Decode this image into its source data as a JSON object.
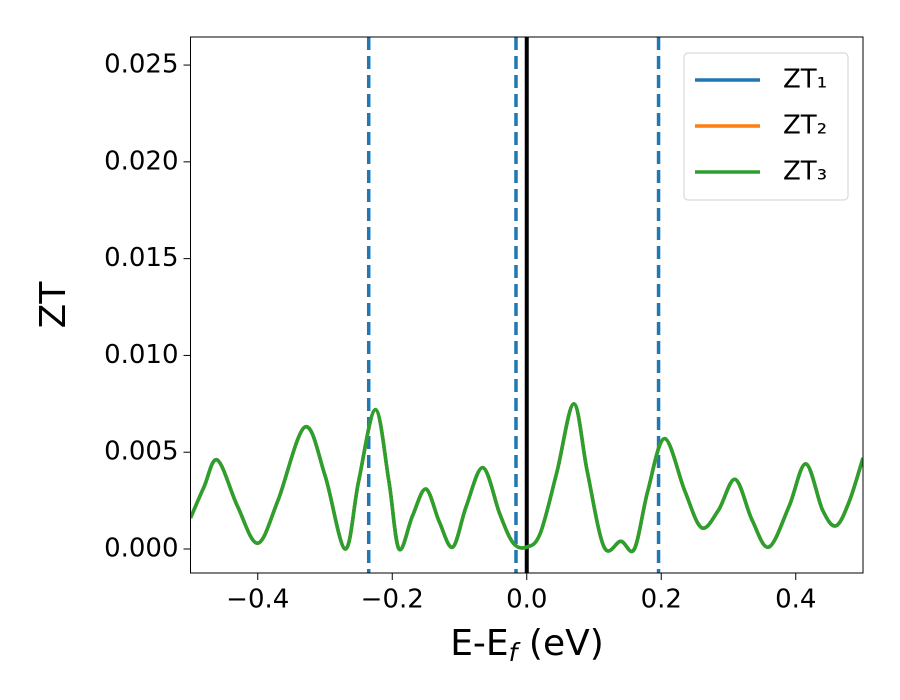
{
  "chart_data": {
    "type": "line",
    "xlabel": [
      "E-E",
      "f",
      " (eV)"
    ],
    "ylabel": "ZT",
    "x": [
      -0.5,
      -0.48,
      -0.46,
      -0.43,
      -0.4,
      -0.37,
      -0.33,
      -0.3,
      -0.27,
      -0.25,
      -0.225,
      -0.205,
      -0.19,
      -0.17,
      -0.15,
      -0.13,
      -0.11,
      -0.09,
      -0.065,
      -0.04,
      -0.02,
      0.0,
      0.02,
      0.045,
      0.07,
      0.09,
      0.115,
      0.14,
      0.16,
      0.18,
      0.205,
      0.235,
      0.26,
      0.285,
      0.31,
      0.335,
      0.36,
      0.39,
      0.415,
      0.44,
      0.46,
      0.48,
      0.5
    ],
    "series": [
      {
        "name": "ZT₁",
        "color": "#1f77b4",
        "values": [
          0.0016,
          0.0032,
          0.0046,
          0.0022,
          0.0003,
          0.0025,
          0.0063,
          0.0038,
          0.0,
          0.0035,
          0.0072,
          0.0035,
          0.0,
          0.0017,
          0.0031,
          0.0014,
          0.0001,
          0.0022,
          0.0042,
          0.0018,
          0.0003,
          0.0001,
          0.0008,
          0.004,
          0.0075,
          0.004,
          0.0001,
          0.0004,
          0.0,
          0.003,
          0.0057,
          0.003,
          0.0011,
          0.002,
          0.0036,
          0.0015,
          0.0001,
          0.0022,
          0.0044,
          0.002,
          0.0012,
          0.0025,
          0.0047
        ]
      },
      {
        "name": "ZT₂",
        "color": "#ff7f0e",
        "values": [
          0.0016,
          0.0032,
          0.0046,
          0.0022,
          0.0003,
          0.0025,
          0.0063,
          0.0038,
          0.0,
          0.0035,
          0.0072,
          0.0035,
          0.0,
          0.0017,
          0.0031,
          0.0014,
          0.0001,
          0.0022,
          0.0042,
          0.0018,
          0.0003,
          0.0001,
          0.0008,
          0.004,
          0.0075,
          0.004,
          0.0001,
          0.0004,
          0.0,
          0.003,
          0.0057,
          0.003,
          0.0011,
          0.002,
          0.0036,
          0.0015,
          0.0001,
          0.0022,
          0.0044,
          0.002,
          0.0012,
          0.0025,
          0.0047
        ]
      },
      {
        "name": "ZT₃",
        "color": "#2ca02c",
        "values": [
          0.0016,
          0.0032,
          0.0046,
          0.0022,
          0.0003,
          0.0025,
          0.0063,
          0.0038,
          0.0,
          0.0035,
          0.0072,
          0.0035,
          0.0,
          0.0017,
          0.0031,
          0.0014,
          0.0001,
          0.0022,
          0.0042,
          0.0018,
          0.0003,
          0.0001,
          0.0008,
          0.004,
          0.0075,
          0.004,
          0.0001,
          0.0004,
          0.0,
          0.003,
          0.0057,
          0.003,
          0.0011,
          0.002,
          0.0036,
          0.0015,
          0.0001,
          0.0022,
          0.0044,
          0.002,
          0.0012,
          0.0025,
          0.0047
        ]
      }
    ],
    "vlines": [
      {
        "x": -0.235,
        "color": "#1f77b4",
        "style": "dashed"
      },
      {
        "x": -0.016,
        "color": "#1f77b4",
        "style": "dashed"
      },
      {
        "x": 0.196,
        "color": "#1f77b4",
        "style": "dashed"
      },
      {
        "x": 0,
        "color": "#000000",
        "style": "solid"
      }
    ],
    "xlim": [
      -0.5,
      0.5
    ],
    "xticks": [
      {
        "value": -0.4,
        "label": "−0.4"
      },
      {
        "value": -0.2,
        "label": "−0.2"
      },
      {
        "value": 0,
        "label": "0.0"
      },
      0.2,
      0.4
    ],
    "ylim": [
      -0.00124,
      0.02645
    ],
    "yticks": [
      {
        "value": 0,
        "label": "0.000"
      },
      0.005,
      {
        "value": 0.01,
        "label": "0.010"
      },
      0.015,
      {
        "value": 0.02,
        "label": "0.020"
      },
      0.025
    ],
    "grid": false,
    "legend": "upper right"
  }
}
